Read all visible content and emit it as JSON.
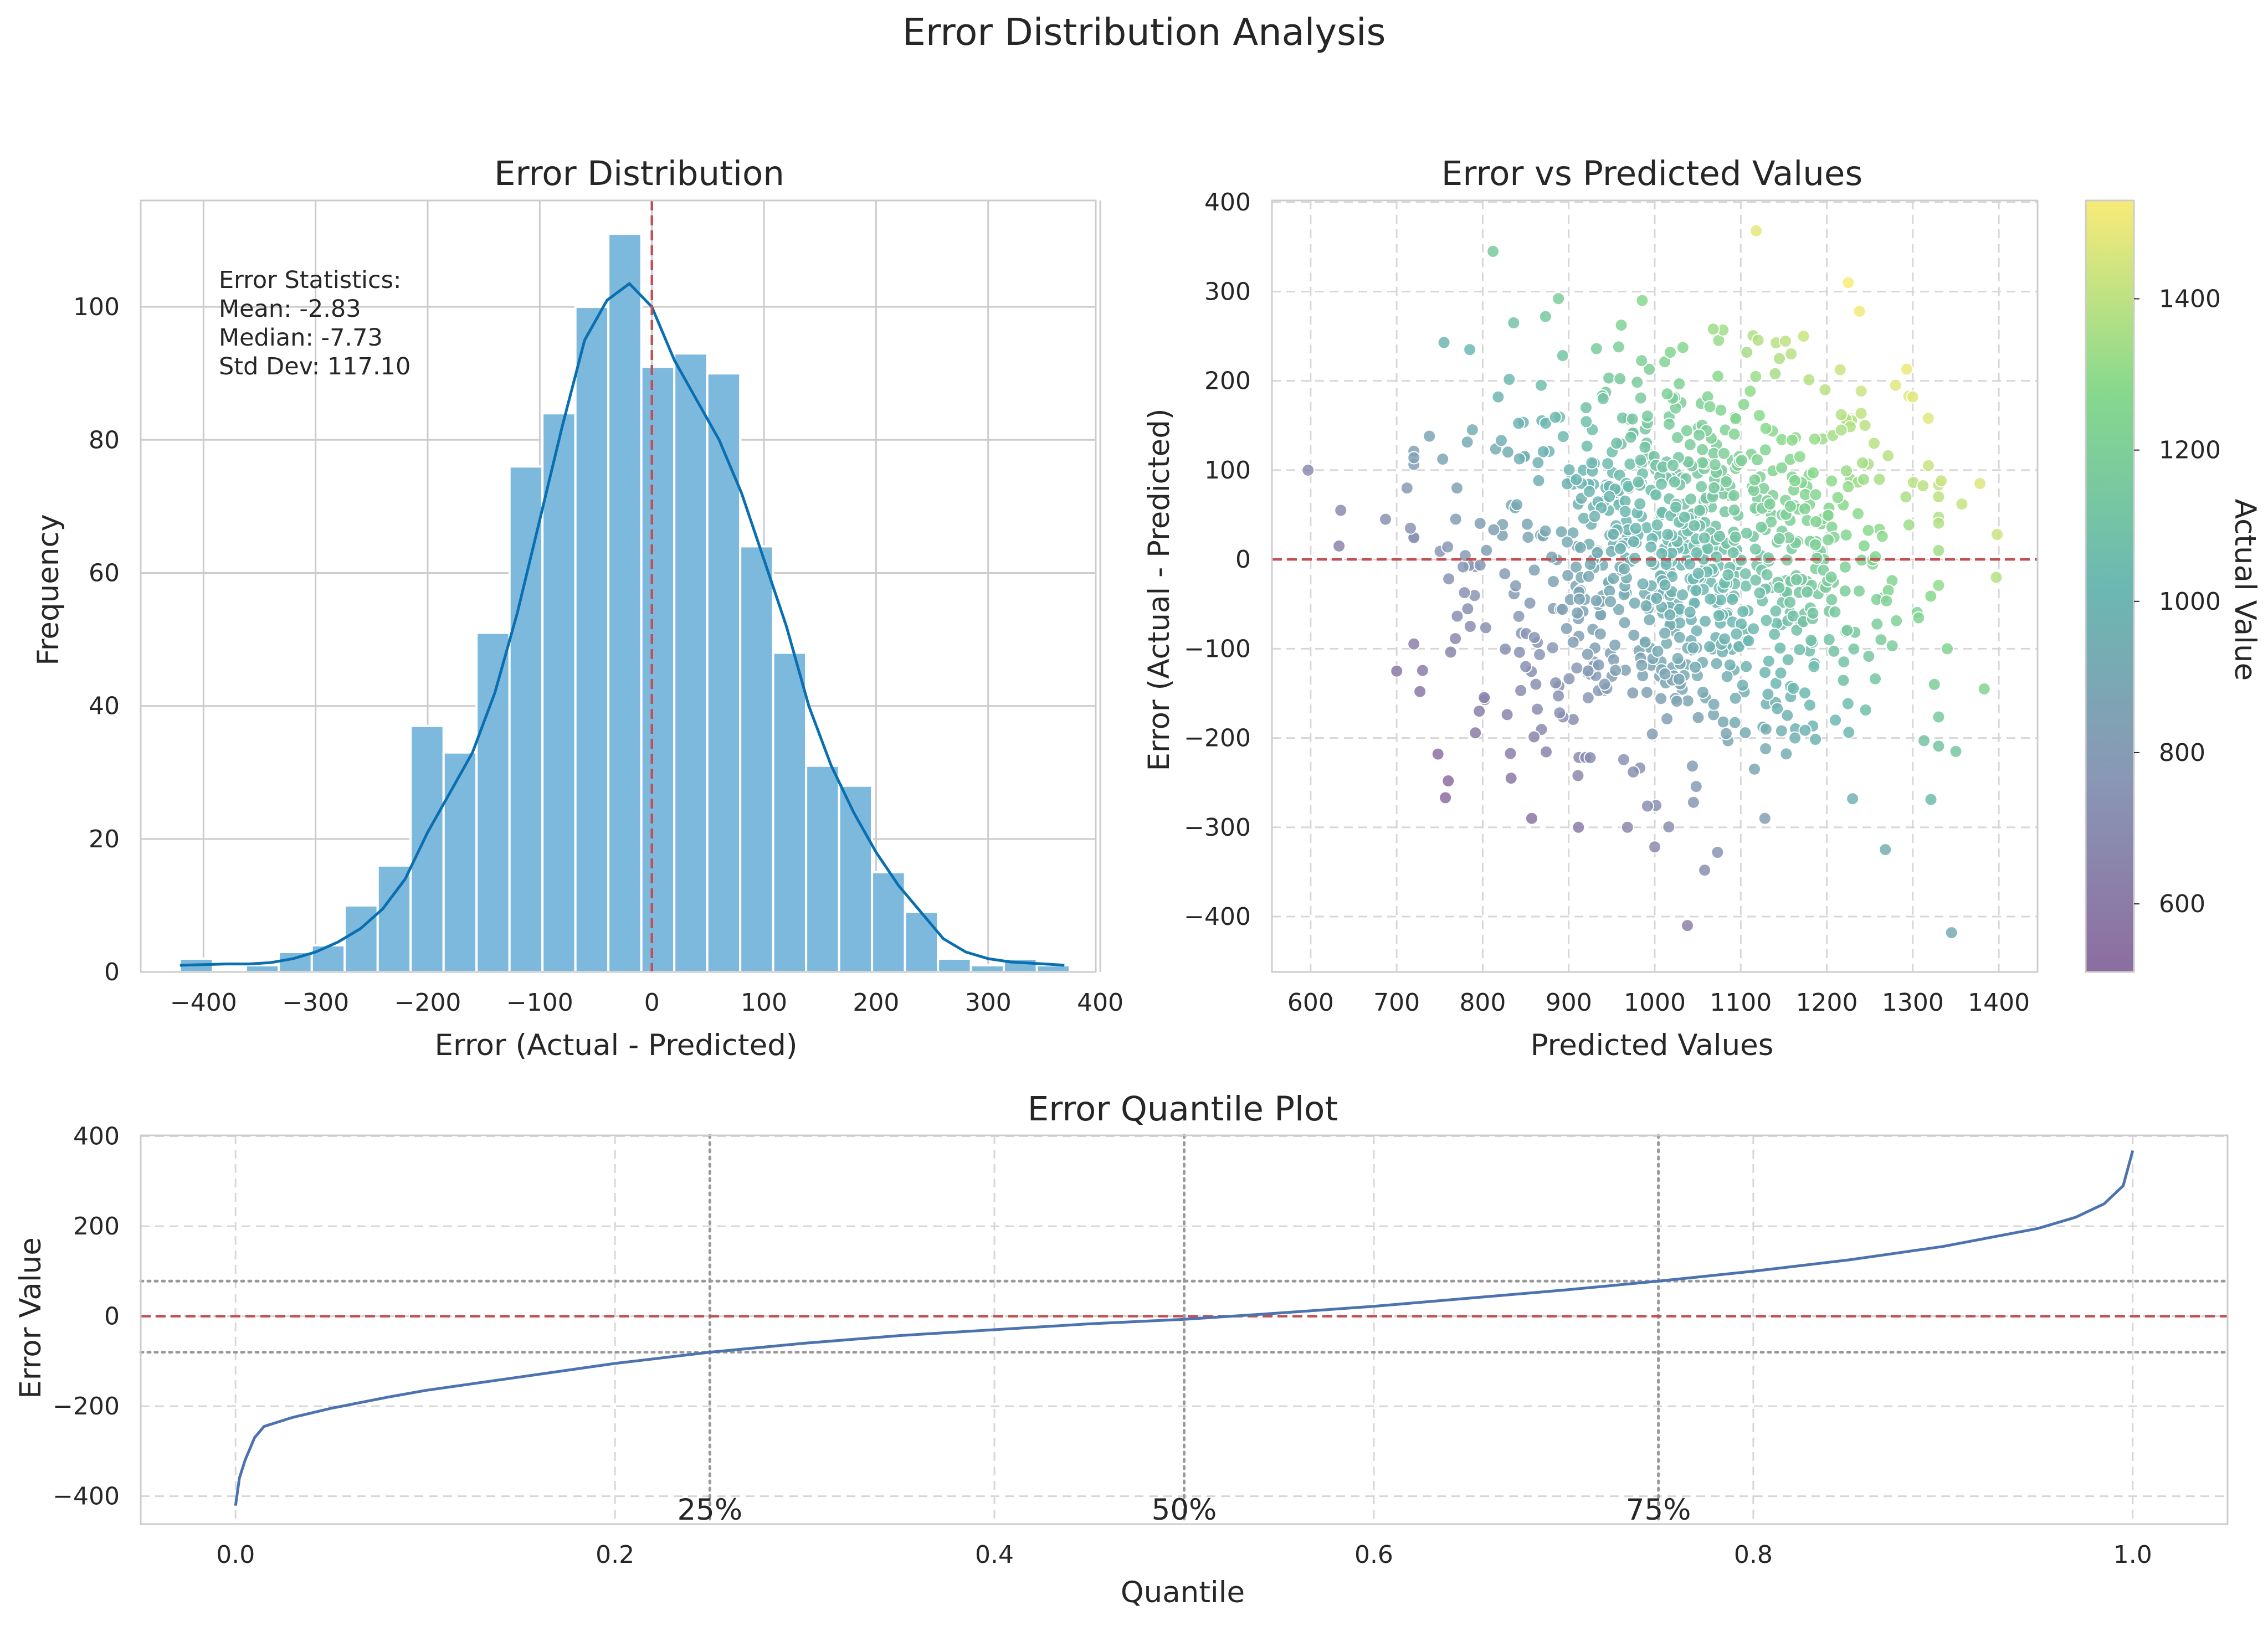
{
  "figure": {
    "title": "Error Distribution Analysis"
  },
  "colors": {
    "hist_bar": "#7db9dc",
    "kde_line": "#0a6fb0",
    "reference_line": "#c44e52",
    "quantile_line": "#4c72b0",
    "quartile_line": "#999999",
    "grid_solid": "#cccccc",
    "grid_dashed": "#d7d7d7",
    "spine": "#cccccc",
    "scatter_edge": "#ffffff"
  },
  "chart_data": [
    {
      "type": "bar",
      "title": "Error Distribution",
      "xlabel": "Error (Actual - Predicted)",
      "ylabel": "Frequency",
      "xlim": [
        -456,
        396
      ],
      "ylim": [
        0,
        116
      ],
      "xticks": [
        -400,
        -300,
        -200,
        -100,
        0,
        100,
        200,
        300,
        400
      ],
      "yticks": [
        0,
        20,
        40,
        60,
        80,
        100
      ],
      "grid": true,
      "bin_width": 29.4,
      "bin_start": -421,
      "values": [
        2,
        0,
        1,
        3,
        4,
        10,
        16,
        37,
        33,
        51,
        76,
        84,
        100,
        111,
        91,
        93,
        90,
        64,
        48,
        31,
        28,
        15,
        9,
        2,
        1,
        2,
        1
      ],
      "kde": {
        "x": [
          -421,
          -400,
          -380,
          -360,
          -340,
          -320,
          -300,
          -280,
          -260,
          -240,
          -220,
          -200,
          -180,
          -160,
          -140,
          -120,
          -100,
          -80,
          -60,
          -40,
          -20,
          0,
          20,
          40,
          60,
          80,
          100,
          120,
          140,
          160,
          180,
          200,
          220,
          240,
          260,
          280,
          300,
          320,
          340,
          360,
          368
        ],
        "y": [
          1,
          1.1,
          1.2,
          1.2,
          1.4,
          2,
          3,
          4.5,
          6.5,
          9.5,
          14,
          21,
          27,
          33,
          42,
          54,
          68,
          82,
          95,
          101,
          103.5,
          100,
          92,
          86,
          80,
          72,
          62,
          52,
          40,
          31,
          24,
          18,
          13,
          9,
          5,
          3,
          2,
          1.5,
          1.3,
          1.1,
          1
        ]
      },
      "vline": {
        "x": 0,
        "style": "dashed"
      },
      "annotation": {
        "lines": [
          "Error Statistics:",
          "Mean: -2.83",
          "Median: -7.73",
          "Std Dev: 117.10"
        ]
      }
    },
    {
      "type": "scatter",
      "title": "Error vs Predicted Values",
      "xlabel": "Predicted Values",
      "ylabel": "Error (Actual - Predicted)",
      "xlim": [
        555,
        1445
      ],
      "ylim": [
        -462,
        402
      ],
      "xticks": [
        600,
        700,
        800,
        900,
        1000,
        1100,
        1200,
        1300,
        1400
      ],
      "yticks": [
        -400,
        -300,
        -200,
        -100,
        0,
        100,
        200,
        300,
        400
      ],
      "grid": true,
      "hline": {
        "y": 0,
        "style": "dashed"
      },
      "colorbar": {
        "label": "Actual Value",
        "colormap": "viridis",
        "range": [
          510,
          1530
        ],
        "ticks": [
          600,
          800,
          1000,
          1200,
          1400
        ]
      },
      "points": [
        {
          "x": 597,
          "y": 100
        },
        {
          "x": 635,
          "y": 55
        },
        {
          "x": 633,
          "y": 15
        },
        {
          "x": 687,
          "y": 45
        },
        {
          "x": 700,
          "y": -125
        },
        {
          "x": 712,
          "y": 80
        },
        {
          "x": 716,
          "y": 35
        },
        {
          "x": 727,
          "y": -148
        },
        {
          "x": 738,
          "y": 138
        },
        {
          "x": 748,
          "y": -218
        },
        {
          "x": 755,
          "y": 243
        },
        {
          "x": 760,
          "y": -248
        },
        {
          "x": 770,
          "y": 80
        },
        {
          "x": 785,
          "y": 235
        },
        {
          "x": 796,
          "y": -170
        },
        {
          "x": 812,
          "y": 345
        },
        {
          "x": 818,
          "y": 182
        },
        {
          "x": 833,
          "y": -245
        },
        {
          "x": 836,
          "y": 265
        },
        {
          "x": 850,
          "y": -120
        },
        {
          "x": 857,
          "y": -290
        },
        {
          "x": 868,
          "y": 195
        },
        {
          "x": 873,
          "y": 272
        },
        {
          "x": 888,
          "y": 292
        },
        {
          "x": 910,
          "y": -60
        },
        {
          "x": 925,
          "y": -222
        },
        {
          "x": 940,
          "y": 180
        },
        {
          "x": 958,
          "y": 238
        },
        {
          "x": 975,
          "y": -238
        },
        {
          "x": 1000,
          "y": -322
        },
        {
          "x": 1018,
          "y": 232
        },
        {
          "x": 1045,
          "y": -272
        },
        {
          "x": 1058,
          "y": -348
        },
        {
          "x": 1068,
          "y": 258
        },
        {
          "x": 1073,
          "y": -328
        },
        {
          "x": 1083,
          "y": -195
        },
        {
          "x": 1107,
          "y": 232
        },
        {
          "x": 1118,
          "y": 368
        },
        {
          "x": 1128,
          "y": -290
        },
        {
          "x": 1140,
          "y": 208
        },
        {
          "x": 1163,
          "y": -200
        },
        {
          "x": 1173,
          "y": 250
        },
        {
          "x": 1185,
          "y": -120
        },
        {
          "x": 1198,
          "y": 190
        },
        {
          "x": 1210,
          "y": -180
        },
        {
          "x": 1225,
          "y": 310
        },
        {
          "x": 1238,
          "y": 278
        },
        {
          "x": 1230,
          "y": -268
        },
        {
          "x": 1255,
          "y": 130
        },
        {
          "x": 1263,
          "y": -90
        },
        {
          "x": 1268,
          "y": -325
        },
        {
          "x": 1280,
          "y": 195
        },
        {
          "x": 1292,
          "y": 70
        },
        {
          "x": 1300,
          "y": 182
        },
        {
          "x": 1318,
          "y": 158
        },
        {
          "x": 1313,
          "y": -203
        },
        {
          "x": 1325,
          "y": -140
        },
        {
          "x": 1333,
          "y": 88
        },
        {
          "x": 1340,
          "y": -100
        },
        {
          "x": 1345,
          "y": -418
        },
        {
          "x": 1350,
          "y": -215
        },
        {
          "x": 1357,
          "y": 62
        },
        {
          "x": 1378,
          "y": 85
        },
        {
          "x": 1383,
          "y": -145
        },
        {
          "x": 1398,
          "y": 28
        },
        {
          "x": 1397,
          "y": -20
        },
        {
          "x": 1038,
          "y": -410
        },
        {
          "x": 1015,
          "y": 28
        },
        {
          "x": 990,
          "y": -52
        },
        {
          "x": 960,
          "y": 12
        }
      ],
      "point_cloud_note_count": 870
    },
    {
      "type": "line",
      "title": "Error Quantile Plot",
      "xlabel": "Quantile",
      "ylabel": "Error Value",
      "xlim": [
        -0.05,
        1.05
      ],
      "ylim": [
        -462,
        402
      ],
      "xticks": [
        0.0,
        0.2,
        0.4,
        0.6,
        0.8,
        1.0
      ],
      "yticks": [
        -400,
        -200,
        0,
        200,
        400
      ],
      "grid": true,
      "x": [
        0.0,
        0.002,
        0.005,
        0.01,
        0.015,
        0.03,
        0.05,
        0.08,
        0.1,
        0.15,
        0.2,
        0.25,
        0.3,
        0.35,
        0.4,
        0.45,
        0.5,
        0.55,
        0.6,
        0.65,
        0.7,
        0.75,
        0.8,
        0.85,
        0.9,
        0.95,
        0.97,
        0.985,
        0.995,
        1.0
      ],
      "y": [
        -421,
        -360,
        -320,
        -270,
        -245,
        -225,
        -205,
        -180,
        -165,
        -135,
        -105,
        -80,
        -60,
        -43,
        -30,
        -17,
        -7,
        7,
        22,
        40,
        58,
        78,
        100,
        125,
        155,
        195,
        220,
        250,
        290,
        368
      ],
      "hline": {
        "y": 0,
        "style": "dashed"
      },
      "quartile_vlines": [
        0.25,
        0.5,
        0.75
      ],
      "quartile_labels": [
        "25%",
        "50%",
        "75%"
      ],
      "iqr_hlines": [
        -80,
        78
      ]
    }
  ]
}
